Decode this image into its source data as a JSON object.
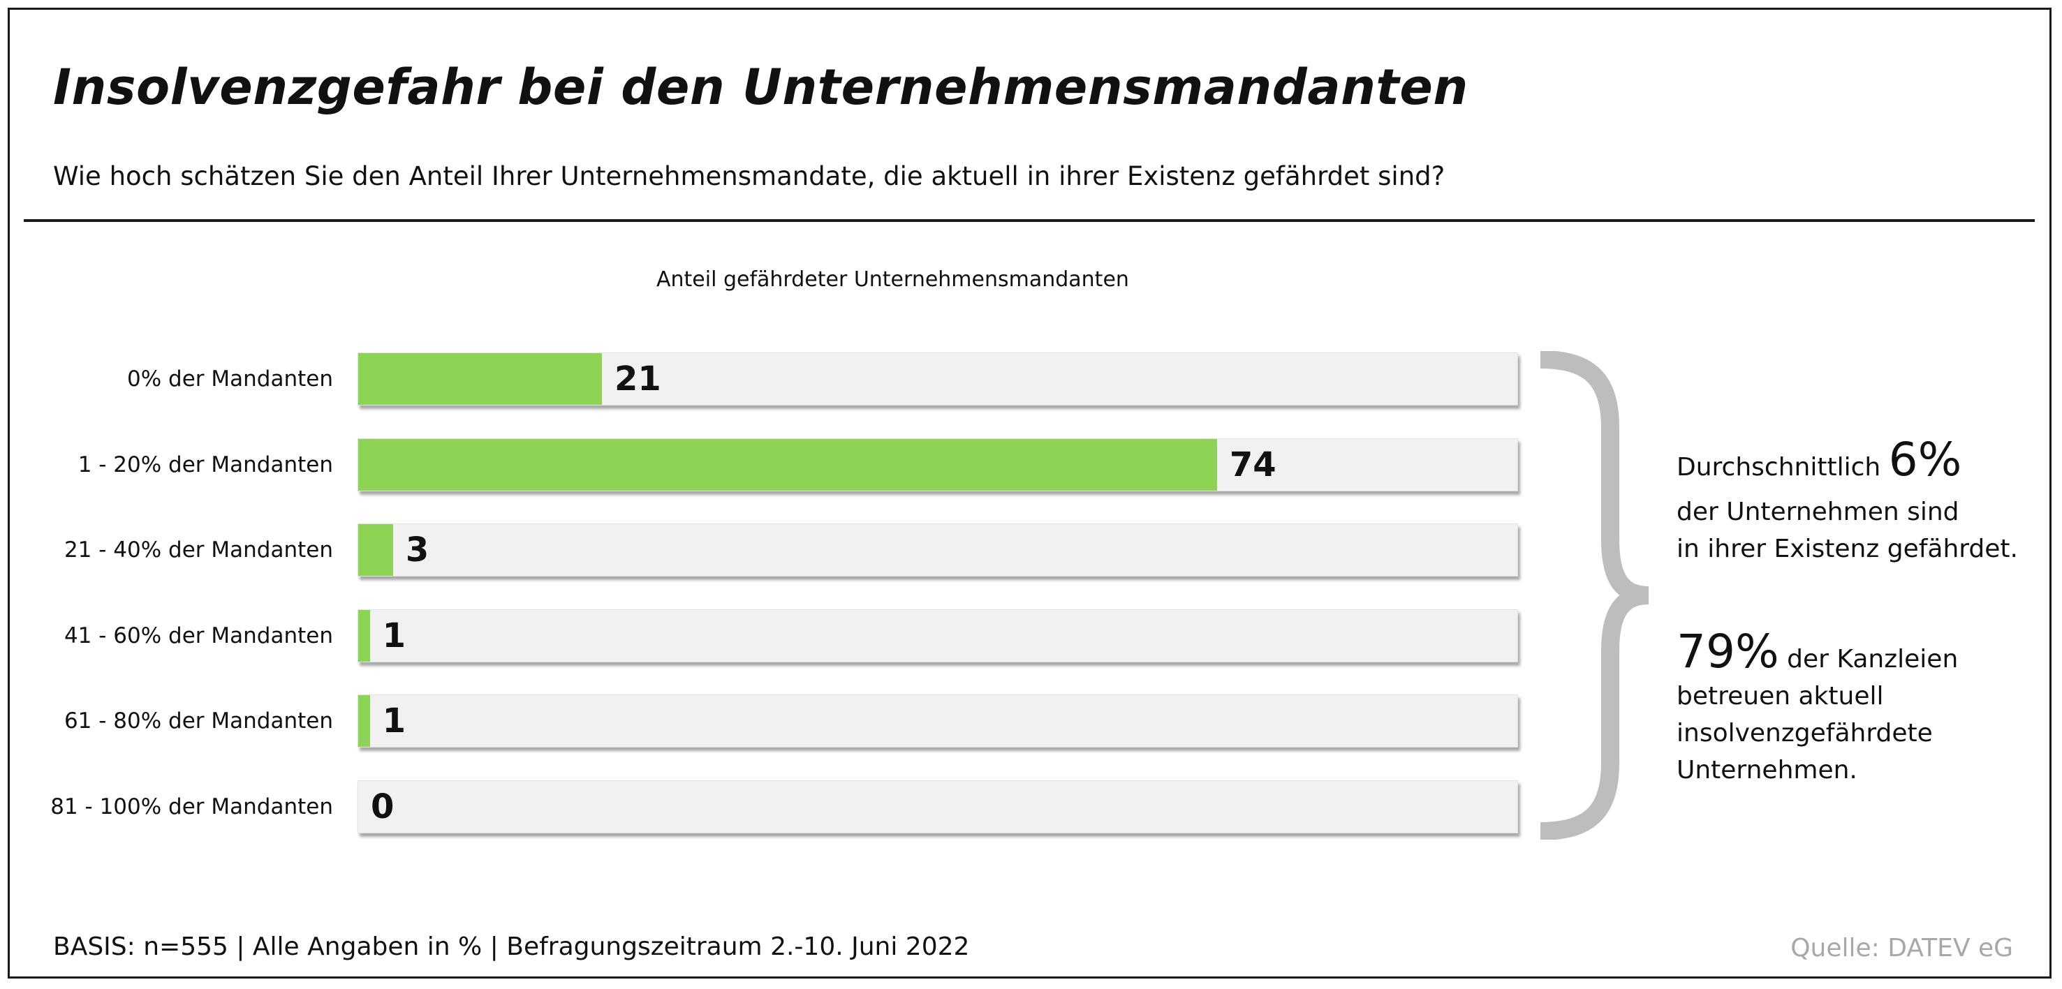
{
  "title": "Insolvenzgefahr bei den Unternehmensmandanten",
  "question": "Wie hoch schätzen Sie den Anteil Ihrer Unternehmensmandate, die aktuell in ihrer Existenz gefährdet sind?",
  "colors": {
    "bar_fill": "#8dd356",
    "bar_track": "#f1f1f1",
    "brace": "#bdbdbd",
    "source_text": "#a8a8a8"
  },
  "chart_data": {
    "type": "bar",
    "orientation": "horizontal",
    "title": "Anteil gefährdeter Unternehmensmandanten",
    "categories": [
      "0% der Mandanten",
      "1 - 20% der Mandanten",
      "21 - 40% der Mandanten",
      "41 - 60% der Mandanten",
      "61 - 80% der Mandanten",
      "81 - 100% der Mandanten"
    ],
    "values": [
      21,
      74,
      3,
      1,
      1,
      0
    ],
    "xlim": [
      0,
      100
    ],
    "grid": false,
    "data_labels": true
  },
  "annotation": {
    "line1_prefix": "Durchschnittlich",
    "line1_big": "6%",
    "line2": "der Unternehmen sind",
    "line3": "in ihrer Existenz gefährdet.",
    "line4_big": "79%",
    "line4_suffix": "der Kanzleien",
    "line5": "betreuen aktuell",
    "line6": "insolvenzgefährdete",
    "line7": "Unternehmen."
  },
  "footer": {
    "basis": "BASIS: n=555 | Alle Angaben in % | Befragungszeitraum 2.-10. Juni 2022",
    "source": "Quelle: DATEV eG"
  }
}
